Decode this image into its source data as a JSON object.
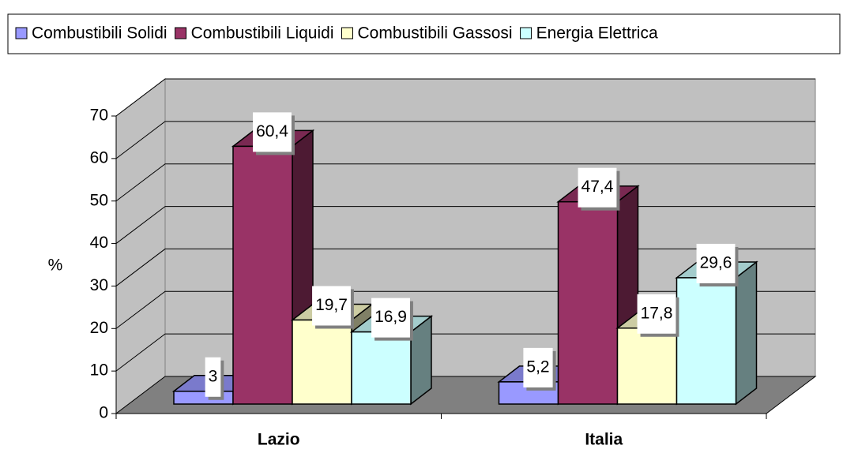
{
  "chart_data": {
    "type": "bar3d",
    "categories": [
      "Lazio",
      "Italia"
    ],
    "y_label": "%",
    "ylim": [
      0,
      70
    ],
    "yticks": [
      0,
      10,
      20,
      30,
      40,
      50,
      60,
      70
    ],
    "grid": true,
    "legend": "top",
    "series": [
      {
        "name": "Combustibili Solidi",
        "color": "#9999ff",
        "values": [
          3,
          5.2
        ],
        "value_labels": [
          "3",
          "5,2"
        ]
      },
      {
        "name": "Combustibili Liquidi",
        "color": "#993366",
        "values": [
          60.4,
          47.4
        ],
        "value_labels": [
          "60,4",
          "47,4"
        ]
      },
      {
        "name": "Combustibili Gassosi",
        "color": "#ffffcc",
        "values": [
          19.7,
          17.8
        ],
        "value_labels": [
          "19,7",
          "17,8"
        ]
      },
      {
        "name": "Energia Elettrica",
        "color": "#ccffff",
        "values": [
          16.9,
          29.6
        ],
        "value_labels": [
          "16,9",
          "29,6"
        ]
      }
    ]
  }
}
